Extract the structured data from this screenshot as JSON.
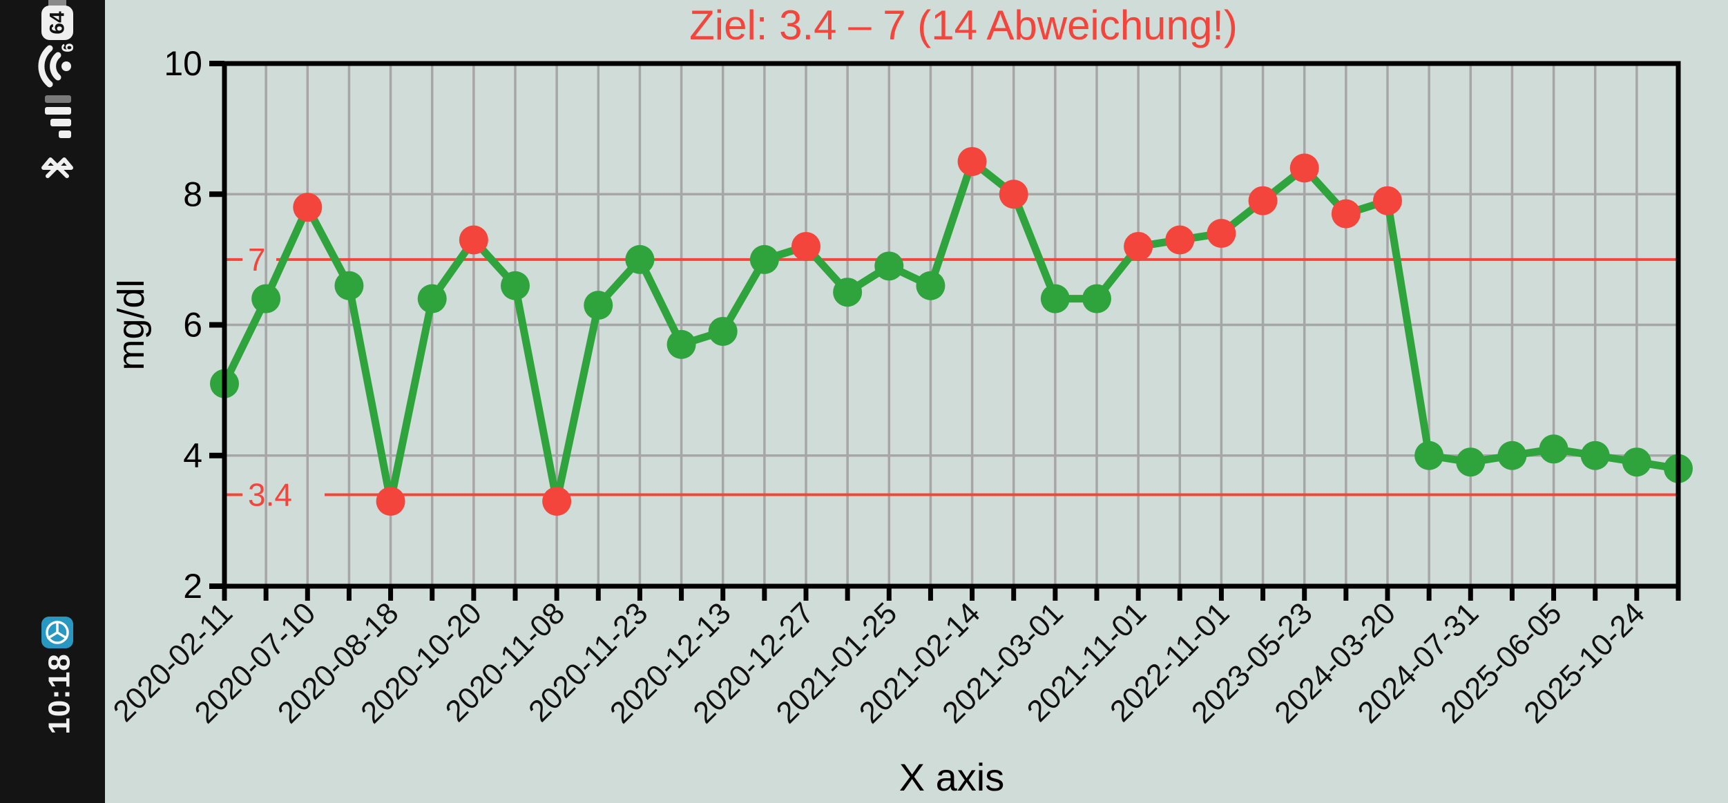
{
  "status_bar": {
    "battery": "64",
    "time": "10:18",
    "icons": [
      "battery-icon",
      "wifi-6-icon",
      "signal-strength-icon",
      "bluetooth-icon",
      "app-notification-icon"
    ],
    "wifi_badge": "6"
  },
  "colors": {
    "background": "#cfdcd8",
    "in_range": "#2fa33c",
    "out_of_range": "#f4453c",
    "target_line": "#f4453c",
    "title": "#f4453c",
    "grid": "#a6a6a6",
    "axis": "#000000",
    "tick_label": "#111111",
    "statusbar_bg": "#141414",
    "statusbar_fg": "#f0f0f0",
    "statusbar_dim": "#7a7a7a",
    "app_icon_blue": "#2898c2"
  },
  "chart_data": {
    "type": "line",
    "title": "Ziel: 3.4 – 7 (14 Abweichung!)",
    "deviation_count": 14,
    "xlabel": "X axis",
    "ylabel": "mg/dl",
    "ylim": [
      2,
      10
    ],
    "yticks": [
      2,
      4,
      6,
      8,
      10
    ],
    "ygrid_values": [
      4,
      6,
      8
    ],
    "grid": true,
    "legend": "none",
    "target_range": {
      "low": 3.4,
      "high": 7,
      "low_label": "3.4",
      "high_label": "7"
    },
    "values": [
      5.1,
      6.4,
      7.8,
      6.6,
      3.3,
      6.4,
      7.3,
      6.6,
      3.3,
      6.3,
      7.0,
      5.7,
      5.9,
      7.0,
      7.2,
      6.5,
      6.9,
      6.6,
      8.5,
      8.0,
      6.4,
      6.4,
      7.2,
      7.3,
      7.4,
      7.9,
      8.4,
      7.7,
      7.9,
      4.0,
      3.9,
      4.0,
      4.1,
      4.0,
      3.9,
      3.8
    ],
    "x_labels": [
      "2020-02-11",
      "2020-07-10",
      "2020-08-18",
      "2020-10-20",
      "2020-11-08",
      "2020-11-23",
      "2020-12-13",
      "2020-12-27",
      "2021-01-25",
      "2021-02-14",
      "2021-03-01",
      "2021-11-01",
      "2022-11-01",
      "2023-05-23",
      "2024-03-20",
      "2024-07-31",
      "2025-06-05",
      "2025-10-24"
    ],
    "x_label_every_n_points": 2,
    "x_label_rotation_deg": -45
  }
}
